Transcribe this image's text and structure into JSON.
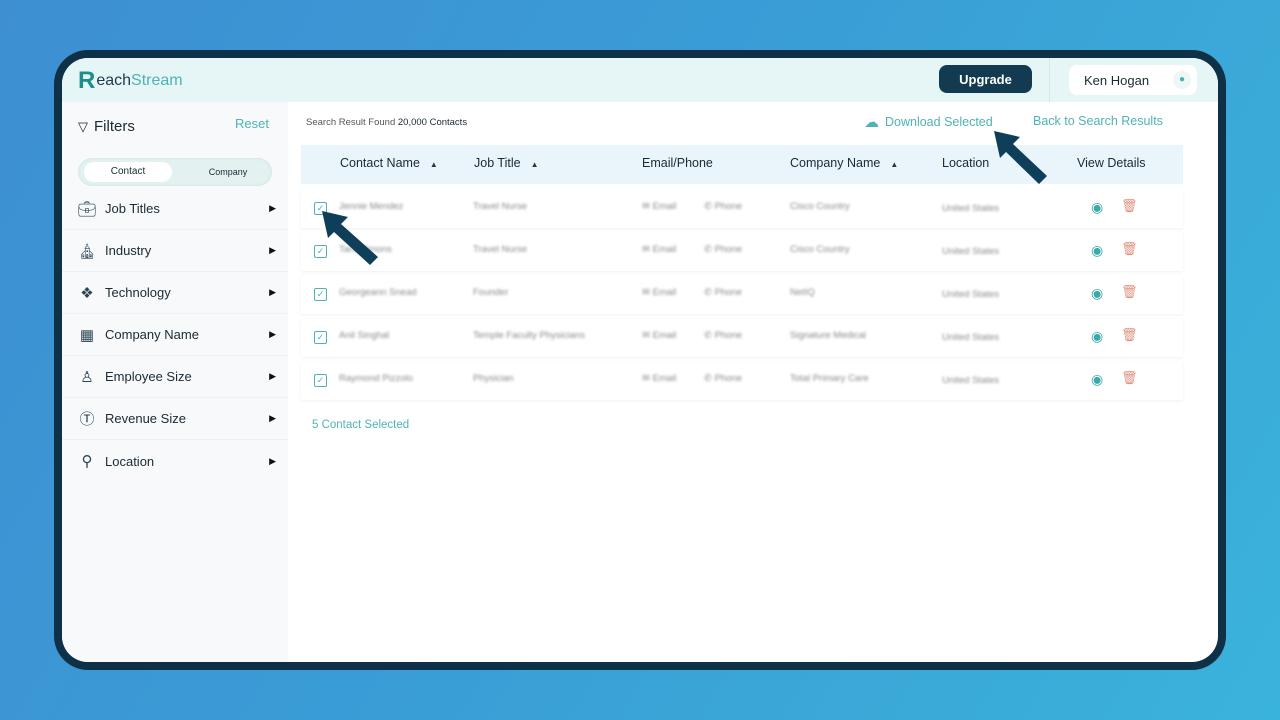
{
  "app": {
    "logo": "ReachStream",
    "logo_r": "R",
    "logo_each": "each",
    "logo_stream": "Stream"
  },
  "header": {
    "upgrade": "Upgrade",
    "user_name": "Ken Hogan"
  },
  "sidebar": {
    "title": "Filters",
    "reset": "Reset",
    "toggle": [
      "Contact",
      "Company"
    ],
    "active_toggle": "Contact",
    "items": [
      {
        "label": "Job Titles",
        "icon": "briefcase-icon"
      },
      {
        "label": "Industry",
        "icon": "factory-icon"
      },
      {
        "label": "Technology",
        "icon": "cube-icon"
      },
      {
        "label": "Company Name",
        "icon": "building-icon"
      },
      {
        "label": "Employee Size",
        "icon": "employee-icon"
      },
      {
        "label": "Revenue Size",
        "icon": "revenue-icon"
      },
      {
        "label": "Location",
        "icon": "map-pin-icon"
      }
    ]
  },
  "main": {
    "found_prefix": "Search Result Found",
    "found_count": "20,000 Contacts",
    "download": "Download Selected",
    "back": "Back to Search Results",
    "columns": [
      "Contact Name",
      "Job Title",
      "Email/Phone",
      "Company Name",
      "Location",
      "View Details"
    ],
    "rows": [
      {
        "name": "Jennie Mendez",
        "title": "Travel Nurse",
        "email": "Email",
        "phone": "Phone",
        "company": "Cisco Country",
        "location": "United States",
        "checked": true
      },
      {
        "name": "Tara Simons",
        "title": "Travel Nurse",
        "email": "Email",
        "phone": "Phone",
        "company": "Cisco Country",
        "location": "United States",
        "checked": true
      },
      {
        "name": "Georgeann Snead",
        "title": "Founder",
        "email": "Email",
        "phone": "Phone",
        "company": "NetIQ",
        "location": "United States",
        "checked": true
      },
      {
        "name": "Anil Singhal",
        "title": "Temple Faculty Physicians",
        "email": "Email",
        "phone": "Phone",
        "company": "Signature Medical",
        "location": "United States",
        "checked": true
      },
      {
        "name": "Raymond Pizzolo",
        "title": "Physician",
        "email": "Email",
        "phone": "Phone",
        "company": "Total Primary Care",
        "location": "United States",
        "checked": true
      }
    ],
    "selected": "5 Contact Selected"
  },
  "colors": {
    "accent": "#4fb3b3",
    "navy": "#123b52",
    "delete": "#e0907c"
  }
}
